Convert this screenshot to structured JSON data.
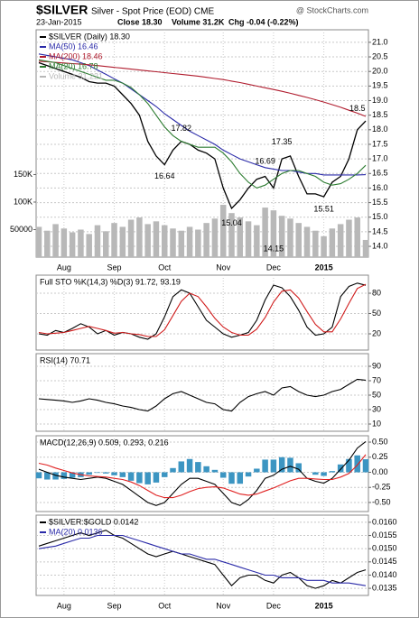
{
  "header": {
    "symbol": "$SILVER",
    "description": "Silver - Spot Price (EOD) CME",
    "date": "23-Jan-2015",
    "close": "Close 18.30",
    "volume": "Volume 31.2K",
    "change": "Chg -0.04 (-0.22%)",
    "watermark": "@ StockCharts.com"
  },
  "chart_data": [
    {
      "type": "line",
      "categories": [
        null,
        null,
        null,
        "Aug",
        null,
        null,
        null,
        null,
        null,
        "Sep",
        null,
        null,
        null,
        null,
        null,
        "Oct",
        null,
        null,
        null,
        null,
        null,
        null,
        "Nov",
        null,
        null,
        null,
        null,
        null,
        "Dec",
        null,
        null,
        null,
        null,
        null,
        "2015",
        null,
        null,
        null,
        null,
        null
      ],
      "ylim": [
        13.63,
        21.43
      ],
      "yticks": [
        {
          "value": 14,
          "label": "14.0"
        },
        14.5,
        {
          "value": 15,
          "label": "15.0"
        },
        15.5,
        {
          "value": 16,
          "label": "16.0"
        },
        16.5,
        {
          "value": 17,
          "label": "17.0"
        },
        17.5,
        {
          "value": 18,
          "label": "18.0"
        },
        18.5,
        {
          "value": 19,
          "label": "19.0"
        },
        19.5,
        {
          "value": 20,
          "label": "20.0"
        },
        20.5,
        {
          "value": 21,
          "label": "21.0"
        }
      ],
      "y2lim": [
        0,
        413000
      ],
      "y2ticks": [
        50000,
        {
          "value": 100000,
          "label": "100K"
        },
        {
          "value": 150000,
          "label": "150K"
        }
      ],
      "series": [
        {
          "name": "$SILVER (Daily) 18.30",
          "color": "#000000",
          "values": [
            20.3,
            20.2,
            20.1,
            20.0,
            19.9,
            19.8,
            19.65,
            19.6,
            19.6,
            19.5,
            19.2,
            18.9,
            18.5,
            17.6,
            17.1,
            16.8,
            17.3,
            17.6,
            17.5,
            17.3,
            17.2,
            17.0,
            16.0,
            15.3,
            15.6,
            16.0,
            16.3,
            16.4,
            16.0,
            17.0,
            17.1,
            16.4,
            15.8,
            15.8,
            15.7,
            16.2,
            16.4,
            17.0,
            18.0,
            18.3
          ]
        },
        {
          "name": "MA(50) 16.46",
          "color": "#2a2aa8",
          "values": [
            20.6,
            20.55,
            20.5,
            20.45,
            20.4,
            20.3,
            20.2,
            20.05,
            19.9,
            19.75,
            19.6,
            19.4,
            19.2,
            19.0,
            18.8,
            18.55,
            18.35,
            18.15,
            17.95,
            17.8,
            17.65,
            17.5,
            17.3,
            17.15,
            17.0,
            16.9,
            16.8,
            16.7,
            16.65,
            16.6,
            16.6,
            16.55,
            16.5,
            16.5,
            16.45,
            16.45,
            16.45,
            16.45,
            16.45,
            16.46
          ]
        },
        {
          "name": "MA(200) 18.46",
          "color": "#b01c2e",
          "values": [
            20.35,
            20.33,
            20.31,
            20.29,
            20.27,
            20.25,
            20.23,
            20.2,
            20.17,
            20.14,
            20.11,
            20.08,
            20.05,
            20.02,
            19.99,
            19.96,
            19.93,
            19.9,
            19.87,
            19.84,
            19.8,
            19.76,
            19.72,
            19.67,
            19.62,
            19.56,
            19.5,
            19.44,
            19.38,
            19.32,
            19.25,
            19.18,
            19.11,
            19.03,
            18.95,
            18.86,
            18.77,
            18.67,
            18.57,
            18.46
          ]
        },
        {
          "name": "MA(20) 16.78",
          "color": "#2e7d32",
          "values": [
            20.4,
            20.35,
            20.3,
            20.2,
            20.1,
            20.0,
            19.9,
            19.8,
            19.7,
            19.7,
            19.6,
            19.45,
            19.2,
            18.9,
            18.5,
            18.1,
            17.8,
            17.6,
            17.5,
            17.4,
            17.4,
            17.4,
            17.2,
            16.9,
            16.5,
            16.2,
            16.0,
            16.1,
            16.3,
            16.5,
            16.6,
            16.6,
            16.5,
            16.4,
            16.2,
            16.1,
            16.15,
            16.3,
            16.5,
            16.78
          ]
        },
        {
          "name": "Volume 31,221",
          "type": "bar",
          "axis": "y2",
          "color": "#b8b8b8",
          "values": [
            55000,
            48000,
            60000,
            52000,
            45000,
            50000,
            42000,
            58000,
            47000,
            62000,
            55000,
            68000,
            72000,
            60000,
            65000,
            58000,
            52000,
            48000,
            55000,
            50000,
            62000,
            70000,
            95000,
            80000,
            72000,
            65000,
            58000,
            90000,
            85000,
            75000,
            70000,
            62000,
            55000,
            48000,
            38000,
            52000,
            60000,
            68000,
            72000,
            31221
          ]
        }
      ],
      "annotations": [
        {
          "value": 17.82,
          "at": 17
        },
        {
          "value": 16.64,
          "at": 15
        },
        {
          "value": 15.04,
          "at": 23
        },
        {
          "value": 16.69,
          "at": 27
        },
        {
          "value": 14.15,
          "at": 28
        },
        {
          "value": 17.35,
          "at": 29
        },
        {
          "value": 15.51,
          "at": 34
        },
        {
          "value": 18.5,
          "at": 38
        }
      ]
    },
    {
      "type": "line",
      "title": "Full STO %K(14,3) %D(3) 91.72, 93.19",
      "ylim": [
        -4,
        106.7
      ],
      "yticks": [
        20,
        50,
        80
      ],
      "series": [
        {
          "color": "#000000",
          "values": [
            20,
            18,
            25,
            22,
            28,
            35,
            30,
            20,
            25,
            18,
            22,
            20,
            15,
            12,
            20,
            45,
            75,
            85,
            80,
            60,
            40,
            30,
            20,
            15,
            18,
            22,
            40,
            70,
            92,
            88,
            75,
            55,
            30,
            18,
            20,
            30,
            75,
            90,
            95,
            91.72
          ]
        },
        {
          "color": "#d01c1c",
          "values": [
            22,
            20,
            21,
            22,
            25,
            28,
            31,
            28,
            25,
            21,
            22,
            20,
            19,
            16,
            16,
            26,
            47,
            68,
            80,
            75,
            60,
            43,
            30,
            22,
            18,
            18,
            27,
            44,
            67,
            83,
            85,
            73,
            53,
            34,
            23,
            23,
            42,
            65,
            87,
            93.19
          ]
        }
      ]
    },
    {
      "type": "line",
      "title": "RSI(14) 70.71",
      "ylim": [
        0,
        107.5
      ],
      "yticks": [
        10,
        30,
        50,
        70,
        90
      ],
      "series": [
        {
          "color": "#000000",
          "values": [
            45,
            44,
            43,
            42,
            40,
            42,
            45,
            43,
            40,
            38,
            35,
            33,
            30,
            28,
            35,
            45,
            52,
            55,
            50,
            45,
            40,
            38,
            30,
            28,
            40,
            48,
            52,
            55,
            50,
            60,
            62,
            55,
            50,
            48,
            50,
            55,
            58,
            65,
            72,
            70.71
          ]
        }
      ]
    },
    {
      "type": "line",
      "title": "MACD(12,26,9) 0.509, 0.293, 0.216",
      "ylim": [
        -0.65,
        0.605
      ],
      "yticks": [
        {
          "value": -0.5,
          "label": "-0.50"
        },
        -0.25,
        {
          "value": 0,
          "label": "0.00"
        },
        0.25,
        {
          "value": 0.5,
          "label": "0.50"
        }
      ],
      "series": [
        {
          "type": "bar",
          "color": "#3c95c2",
          "values": [
            -0.1,
            -0.12,
            -0.12,
            -0.11,
            -0.09,
            -0.08,
            -0.04,
            -0.01,
            -0.02,
            -0.05,
            -0.08,
            -0.14,
            -0.18,
            -0.2,
            -0.17,
            -0.08,
            0.07,
            0.18,
            0.22,
            0.17,
            0.1,
            0.04,
            -0.09,
            -0.19,
            -0.19,
            -0.07,
            0.06,
            0.21,
            0.21,
            0.25,
            0.24,
            0.15,
            0.0,
            -0.04,
            -0.06,
            0.02,
            0.13,
            0.22,
            0.28,
            0.216
          ]
        },
        {
          "color": "#000000",
          "values": [
            0.05,
            0.0,
            -0.05,
            -0.08,
            -0.1,
            -0.12,
            -0.1,
            -0.08,
            -0.1,
            -0.15,
            -0.2,
            -0.3,
            -0.4,
            -0.5,
            -0.55,
            -0.5,
            -0.35,
            -0.2,
            -0.1,
            -0.1,
            -0.15,
            -0.2,
            -0.35,
            -0.5,
            -0.55,
            -0.45,
            -0.3,
            -0.1,
            -0.05,
            0.05,
            0.1,
            0.05,
            -0.1,
            -0.15,
            -0.18,
            -0.1,
            0.05,
            0.2,
            0.4,
            0.509
          ]
        },
        {
          "color": "#e02020",
          "values": [
            0.15,
            0.12,
            0.07,
            0.03,
            -0.01,
            -0.04,
            -0.06,
            -0.07,
            -0.08,
            -0.1,
            -0.12,
            -0.16,
            -0.22,
            -0.3,
            -0.38,
            -0.42,
            -0.42,
            -0.38,
            -0.32,
            -0.27,
            -0.25,
            -0.24,
            -0.26,
            -0.31,
            -0.36,
            -0.38,
            -0.36,
            -0.31,
            -0.26,
            -0.2,
            -0.14,
            -0.1,
            -0.1,
            -0.11,
            -0.12,
            -0.12,
            -0.08,
            -0.02,
            0.12,
            0.293
          ]
        }
      ]
    },
    {
      "type": "line",
      "categories": [
        null,
        null,
        null,
        "Aug",
        null,
        null,
        null,
        null,
        null,
        "Sep",
        null,
        null,
        null,
        null,
        null,
        "Oct",
        null,
        null,
        null,
        null,
        null,
        null,
        "Nov",
        null,
        null,
        null,
        null,
        null,
        "Dec",
        null,
        null,
        null,
        null,
        null,
        "2015",
        null,
        null,
        null,
        null,
        null
      ],
      "ylim": [
        0.01323,
        0.01627
      ],
      "yticks": [
        0.0135,
        {
          "value": 0.014,
          "label": "0.0140"
        },
        0.0145,
        {
          "value": 0.015,
          "label": "0.0150"
        },
        0.0155,
        {
          "value": 0.016,
          "label": "0.0160"
        }
      ],
      "series": [
        {
          "name": "$SILVER:$GOLD 0.0142",
          "color": "#000000",
          "values": [
            0.0151,
            0.0152,
            0.0153,
            0.0154,
            0.0155,
            0.0156,
            0.0155,
            0.0156,
            0.0157,
            0.0155,
            0.0154,
            0.0152,
            0.015,
            0.0148,
            0.0147,
            0.0148,
            0.0149,
            0.0148,
            0.0147,
            0.0146,
            0.0145,
            0.0144,
            0.014,
            0.0136,
            0.0139,
            0.014,
            0.014,
            0.0138,
            0.0137,
            0.014,
            0.0141,
            0.0139,
            0.0136,
            0.0135,
            0.0136,
            0.0138,
            0.0137,
            0.0139,
            0.0141,
            0.0142
          ]
        },
        {
          "name": "MA(20) 0.0136",
          "color": "#2a2aa8",
          "values": [
            0.015,
            0.01505,
            0.0151,
            0.0152,
            0.0153,
            0.0154,
            0.0154,
            0.0155,
            0.0155,
            0.0155,
            0.0155,
            0.0154,
            0.0153,
            0.0152,
            0.0151,
            0.015,
            0.0149,
            0.0148,
            0.0148,
            0.0147,
            0.0146,
            0.0146,
            0.0145,
            0.0144,
            0.0143,
            0.0142,
            0.0141,
            0.014,
            0.014,
            0.0139,
            0.0139,
            0.0139,
            0.0138,
            0.0138,
            0.0138,
            0.0137,
            0.0137,
            0.0137,
            0.01365,
            0.0136
          ]
        }
      ]
    }
  ]
}
